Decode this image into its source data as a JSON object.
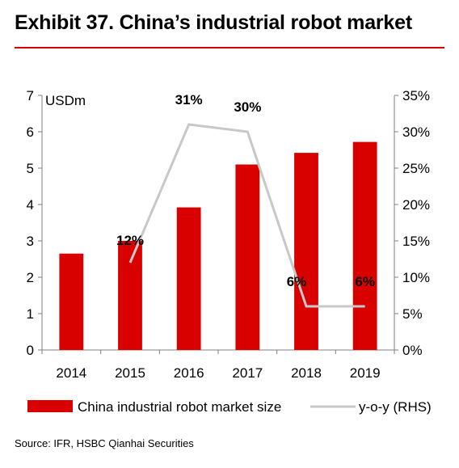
{
  "title": "Exhibit 37. China’s industrial robot market",
  "source": "Source: IFR, HSBC Qianhai Securities",
  "colors": {
    "bar": "#d90000",
    "line": "#c8c8c8",
    "title_rule": "#d90000"
  },
  "chart_data": {
    "type": "bar",
    "categories": [
      "2014",
      "2015",
      "2016",
      "2017",
      "2018",
      "2019"
    ],
    "series": [
      {
        "name": "China industrial robot market size",
        "type": "bar",
        "axis": "left",
        "values": [
          2.65,
          3.0,
          3.92,
          5.1,
          5.42,
          5.72
        ]
      },
      {
        "name": "y-o-y (RHS)",
        "type": "line",
        "axis": "right",
        "values": [
          null,
          12,
          31,
          30,
          6,
          6
        ],
        "labels": [
          "",
          "12%",
          "31%",
          "30%",
          "6%",
          "6%"
        ]
      }
    ],
    "ylabel": "USDm",
    "ylim": [
      0,
      7
    ],
    "yticks": [
      "0",
      "1",
      "2",
      "3",
      "4",
      "5",
      "6",
      "7"
    ],
    "y2lim": [
      0,
      35
    ],
    "y2ticks": [
      "0%",
      "5%",
      "10%",
      "15%",
      "20%",
      "25%",
      "30%",
      "35%"
    ],
    "grid": false,
    "legend_position": "bottom"
  }
}
